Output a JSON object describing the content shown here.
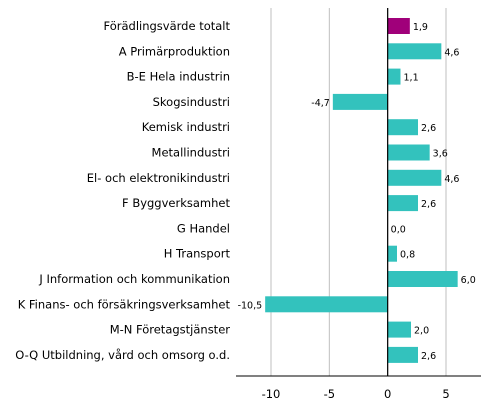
{
  "chart_data": {
    "type": "bar",
    "orientation": "horizontal",
    "title": "",
    "xlabel": "",
    "ylabel": "",
    "categories": [
      "Förädlingsvärde totalt",
      "A Primärproduktion",
      "B-E Hela industrin",
      "Skogsindustri",
      "Kemisk industri",
      "Metallindustri",
      "El- och elektronikindustri",
      "F Byggverksamhet",
      "G Handel",
      "H Transport",
      "J Information och kommunikation",
      "K Finans- och försäkringsverksamhet",
      "M-N Företagstjänster",
      "O-Q Utbildning, vård och omsorg o.d."
    ],
    "values": [
      1.9,
      4.6,
      1.1,
      -4.7,
      2.6,
      3.6,
      4.6,
      2.6,
      0.0,
      0.8,
      6.0,
      -10.5,
      2.0,
      2.6
    ],
    "value_labels": [
      "1,9",
      "4,6",
      "1,1",
      "-4,7",
      "2,6",
      "3,6",
      "4,6",
      "2,6",
      "0,0",
      "0,8",
      "6,0",
      "-10,5",
      "2,0",
      "2,6"
    ],
    "xlim": [
      -13,
      8
    ],
    "xticks": [
      -10,
      -5,
      0,
      5
    ],
    "xtick_labels": [
      "-10",
      "-5",
      "0",
      "5"
    ],
    "grid": "vertical",
    "legend": "none",
    "colors": {
      "highlight": "#a0007a",
      "bar": "#33c2bd",
      "grid": "#bfbfbf",
      "axis": "#000000"
    },
    "highlight_index": 0
  }
}
